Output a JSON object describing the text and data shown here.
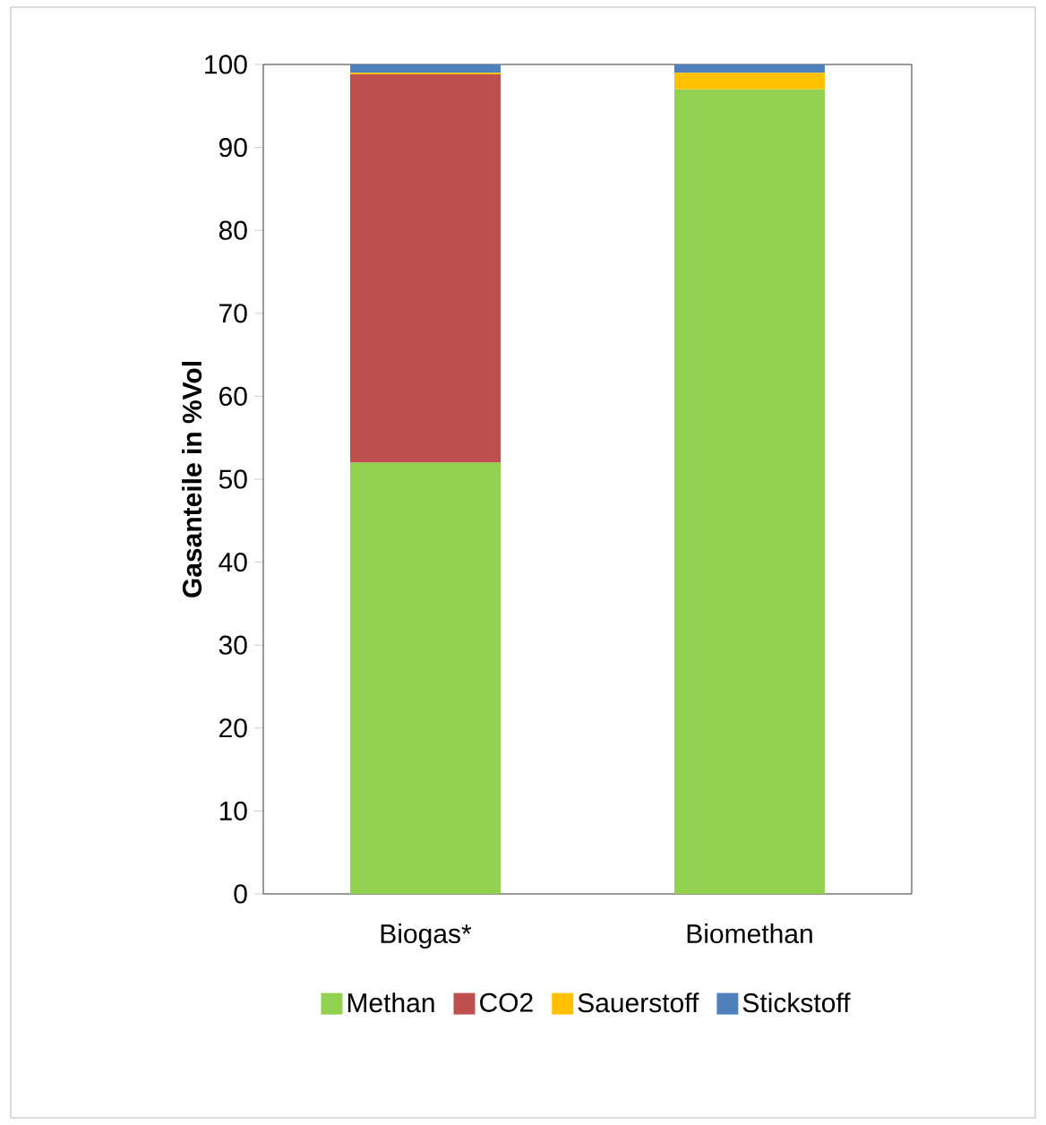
{
  "chart_data": {
    "type": "bar",
    "stacked": true,
    "ylabel": "Gasanteile in  %Vol",
    "categories": [
      "Biogas*",
      "Biomethan"
    ],
    "series": [
      {
        "name": "Methan",
        "color": "#92d050",
        "values": [
          52,
          97
        ]
      },
      {
        "name": "CO2",
        "color": "#c0504d",
        "values": [
          46.8,
          0
        ]
      },
      {
        "name": "Sauerstoff",
        "color": "#ffc000",
        "values": [
          0.2,
          2
        ]
      },
      {
        "name": "Stickstoff",
        "color": "#4f81bd",
        "values": [
          1,
          1
        ]
      }
    ],
    "ylim": [
      0,
      100
    ],
    "yticks": [
      0,
      10,
      20,
      30,
      40,
      50,
      60,
      70,
      80,
      90,
      100
    ],
    "legend": "bottom"
  }
}
